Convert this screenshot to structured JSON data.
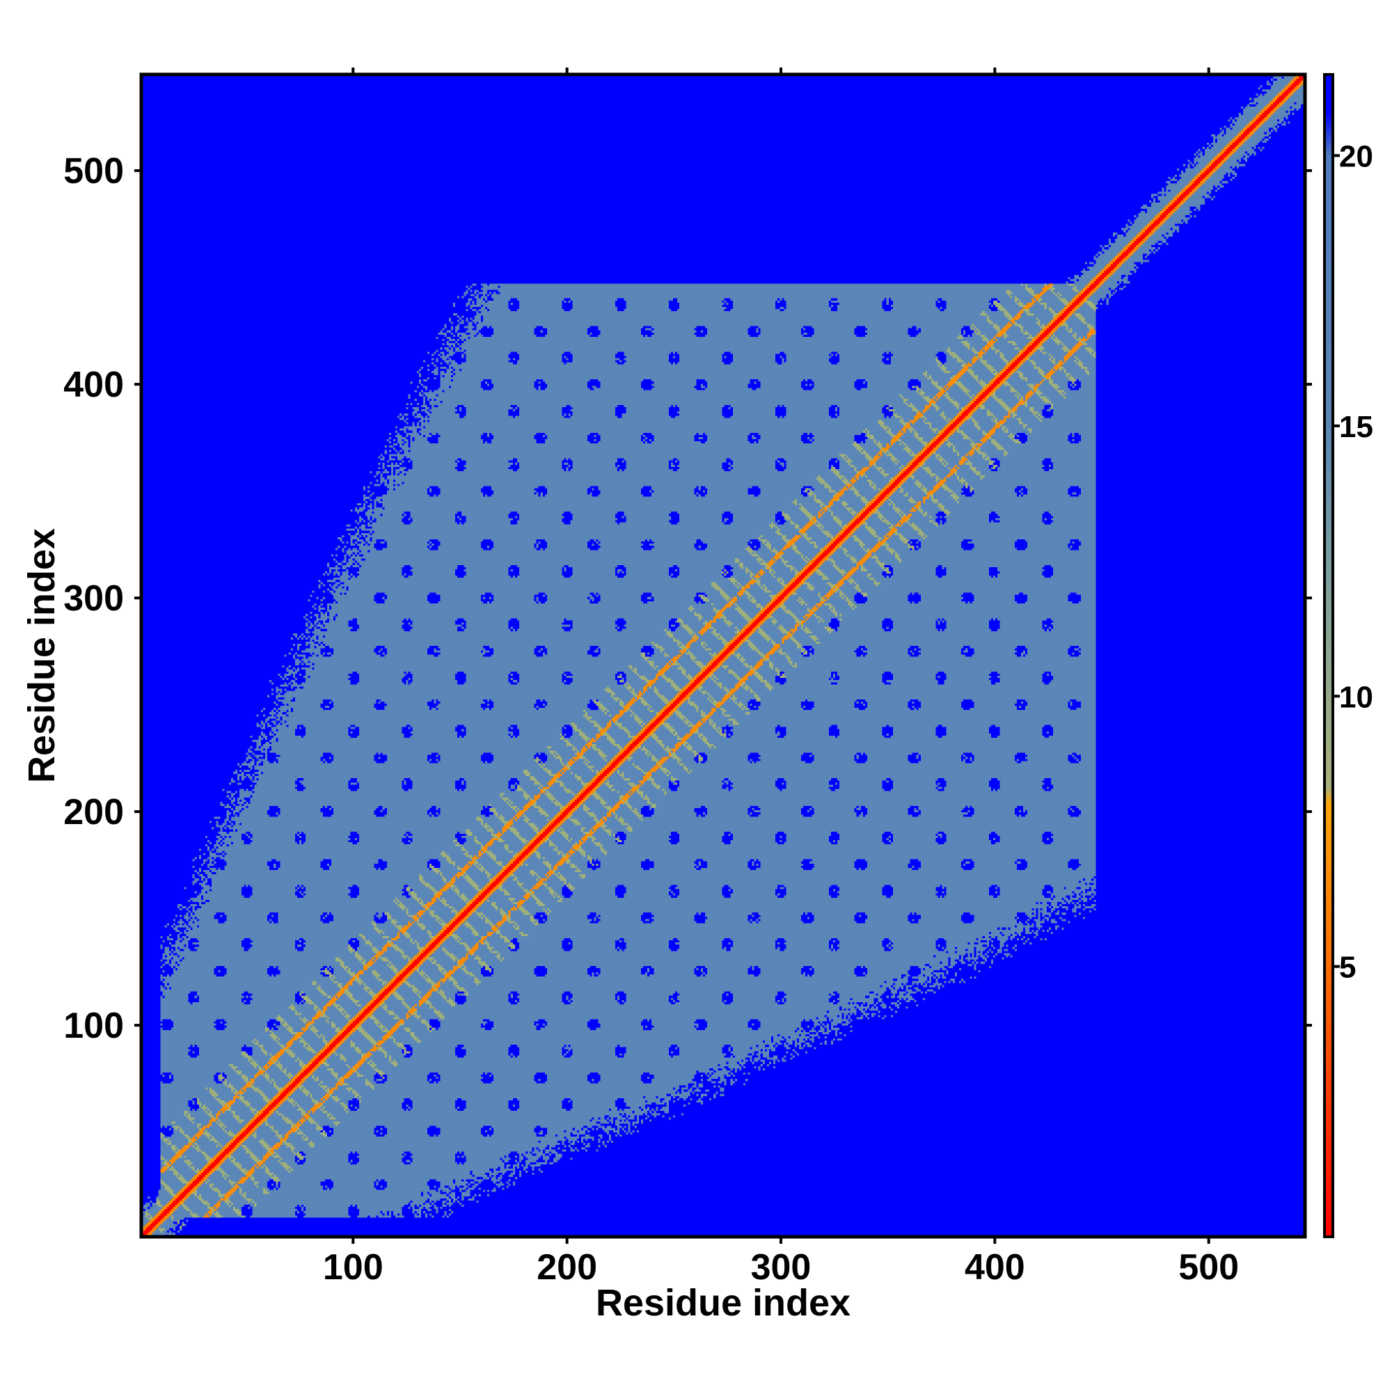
{
  "chart_data": {
    "type": "heatmap",
    "title": "",
    "xlabel": "Residue index",
    "ylabel": "Residue index",
    "xlim": [
      1,
      545
    ],
    "ylim": [
      1,
      545
    ],
    "x_ticks": [
      100,
      200,
      300,
      400,
      500
    ],
    "y_ticks": [
      100,
      200,
      300,
      400,
      500
    ],
    "x_tick_labels": [
      "100",
      "200",
      "300",
      "400",
      "500"
    ],
    "y_tick_labels": [
      "100",
      "200",
      "300",
      "400",
      "500"
    ],
    "matrix_description_values": {
      "background_value": 21,
      "contact_region_value": 17,
      "diagonal_value": 0,
      "offset_band_value": 5,
      "offset_band_lag": 21,
      "contact_region_end_residue": 447,
      "helix_repeat_period": 25
    },
    "colorbar": {
      "range": [
        0,
        21.5
      ],
      "ticks": [
        5,
        10,
        15,
        20
      ],
      "tick_labels": [
        "5",
        "10",
        "15",
        "20"
      ],
      "stops": [
        {
          "value": 0,
          "color": "#ff0000"
        },
        {
          "value": 4,
          "color": "#ff5a00"
        },
        {
          "value": 8,
          "color": "#ffa500"
        },
        {
          "value": 8.3,
          "color": "#a8b07a"
        },
        {
          "value": 12,
          "color": "#7fa19b"
        },
        {
          "value": 15,
          "color": "#5a86b4"
        },
        {
          "value": 20,
          "color": "#4f7bbf"
        },
        {
          "value": 20.8,
          "color": "#0000ff"
        },
        {
          "value": 21.5,
          "color": "#0000ff"
        }
      ]
    },
    "colors": {
      "background": "#0000ff",
      "contact": "#5b86b8",
      "mid": "#a0b07a",
      "near": "#ff8c00",
      "diagonal": "#ff0000"
    },
    "grid": false,
    "legend": "colorbar-right"
  }
}
